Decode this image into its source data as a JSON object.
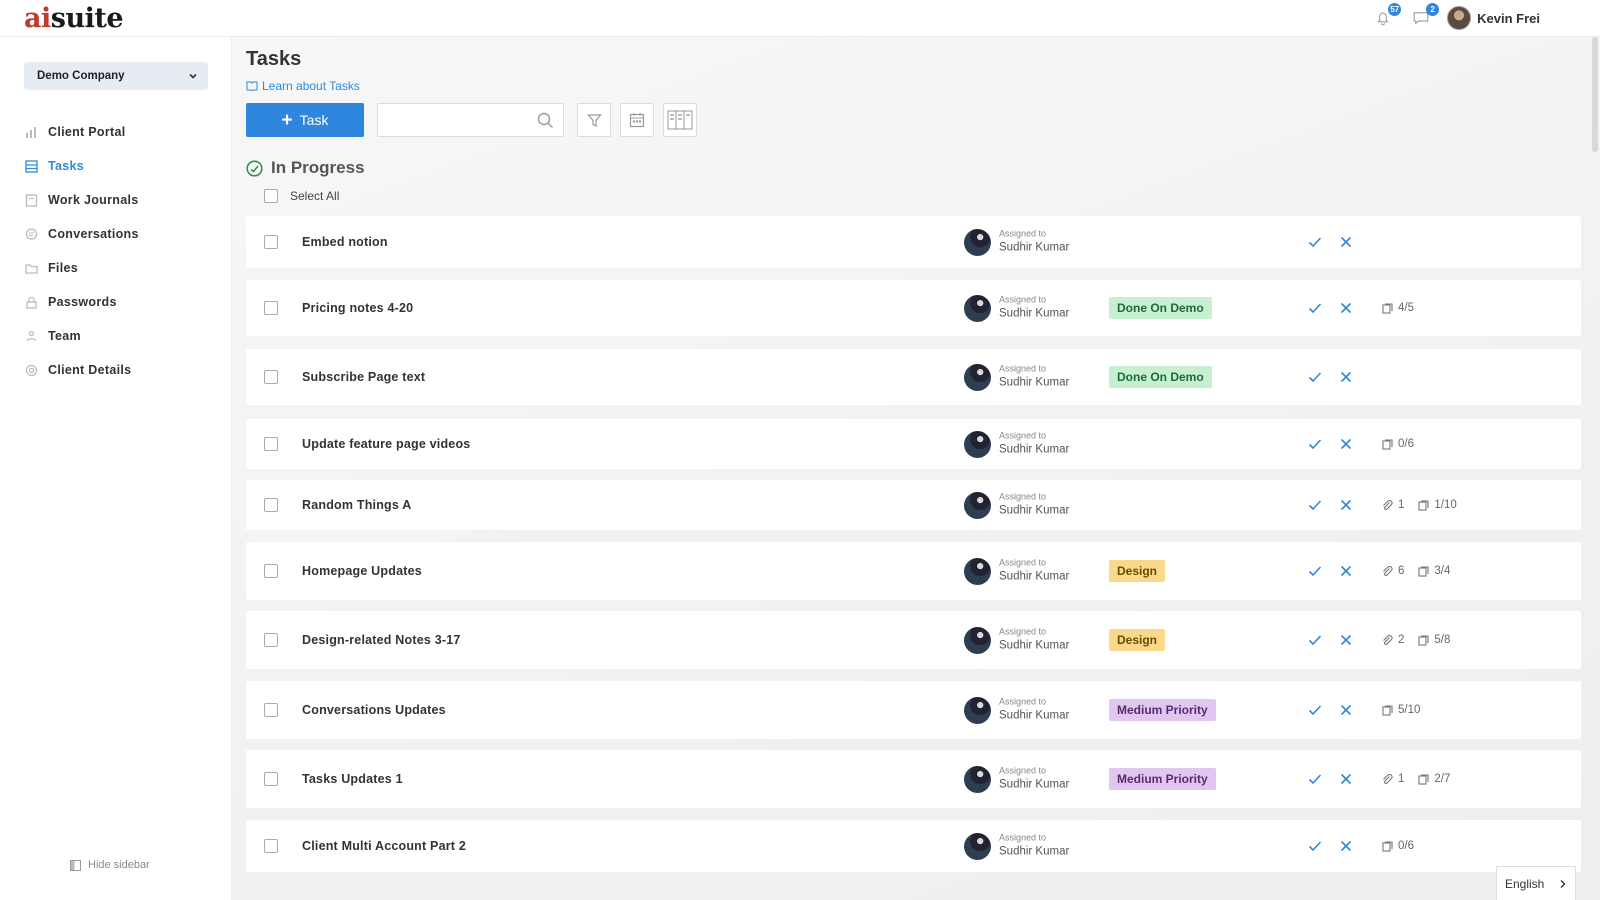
{
  "app": {
    "logo_accent": "ai",
    "logo_rest": "suite",
    "notifications_count": "57",
    "messages_count": "2",
    "user_name": "Kevin Frei"
  },
  "sidebar": {
    "company": "Demo Company",
    "items": [
      {
        "label": "Client Portal",
        "icon": "bar-chart-icon",
        "active": false
      },
      {
        "label": "Tasks",
        "icon": "tasks-icon",
        "active": true
      },
      {
        "label": "Work Journals",
        "icon": "journal-icon",
        "active": false
      },
      {
        "label": "Conversations",
        "icon": "chat-icon",
        "active": false
      },
      {
        "label": "Files",
        "icon": "folder-icon",
        "active": false
      },
      {
        "label": "Passwords",
        "icon": "lock-icon",
        "active": false
      },
      {
        "label": "Team",
        "icon": "team-icon",
        "active": false
      },
      {
        "label": "Client Details",
        "icon": "settings-icon",
        "active": false
      }
    ],
    "hide_label": "Hide sidebar"
  },
  "main": {
    "title": "Tasks",
    "learn_link": "Learn about Tasks",
    "add_button_label": "Task",
    "search_placeholder": "",
    "section_title": "In Progress",
    "select_all_label": "Select All",
    "assigned_label": "Assigned to"
  },
  "tasks": [
    {
      "title": "Embed notion",
      "assignee": "Sudhir Kumar",
      "tag": "",
      "tag_color": "",
      "attachments": "",
      "subtasks": ""
    },
    {
      "title": "Pricing notes 4-20",
      "assignee": "Sudhir Kumar",
      "tag": "Done On Demo",
      "tag_color": "green",
      "attachments": "",
      "subtasks": "4/5"
    },
    {
      "title": "Subscribe Page text",
      "assignee": "Sudhir Kumar",
      "tag": "Done On Demo",
      "tag_color": "green",
      "attachments": "",
      "subtasks": ""
    },
    {
      "title": "Update feature page videos",
      "assignee": "Sudhir Kumar",
      "tag": "",
      "tag_color": "",
      "attachments": "",
      "subtasks": "0/6"
    },
    {
      "title": "Random Things A",
      "assignee": "Sudhir Kumar",
      "tag": "",
      "tag_color": "",
      "attachments": "1",
      "subtasks": "1/10"
    },
    {
      "title": "Homepage Updates",
      "assignee": "Sudhir Kumar",
      "tag": "Design",
      "tag_color": "yellow",
      "attachments": "6",
      "subtasks": "3/4"
    },
    {
      "title": "Design-related Notes 3-17",
      "assignee": "Sudhir Kumar",
      "tag": "Design",
      "tag_color": "yellow",
      "attachments": "2",
      "subtasks": "5/8"
    },
    {
      "title": "Conversations Updates",
      "assignee": "Sudhir Kumar",
      "tag": "Medium Priority",
      "tag_color": "purple",
      "attachments": "",
      "subtasks": "5/10"
    },
    {
      "title": "Tasks Updates 1",
      "assignee": "Sudhir Kumar",
      "tag": "Medium Priority",
      "tag_color": "purple",
      "attachments": "1",
      "subtasks": "2/7"
    },
    {
      "title": "Client Multi Account Part 2",
      "assignee": "Sudhir Kumar",
      "tag": "",
      "tag_color": "",
      "attachments": "",
      "subtasks": "0/6"
    }
  ],
  "language": "English",
  "colors": {
    "accent": "#2e86de",
    "logo_red": "#c0392b",
    "done_green": "#c7f0d3",
    "design_yellow": "#fbd98a",
    "priority_purple": "#e1c6ef"
  }
}
